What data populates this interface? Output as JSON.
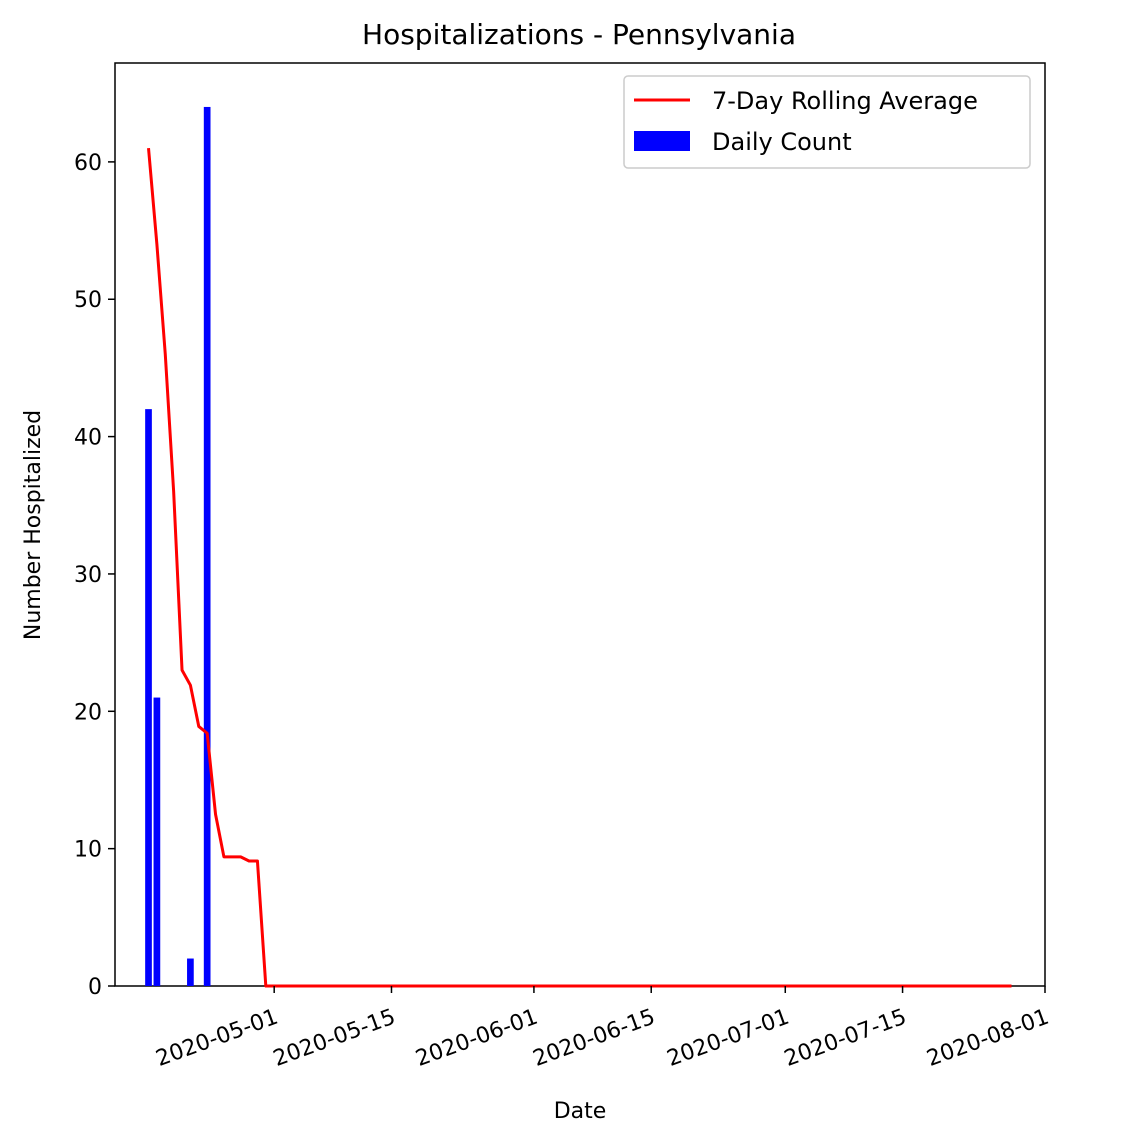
{
  "chart_data": {
    "type": "bar",
    "title": "Hospitalizations - Pennsylvania",
    "xlabel": "Date",
    "ylabel": "Number Hospitalized",
    "ylim": [
      0,
      67.2
    ],
    "xlim": [
      "2020-04-12",
      "2020-08-01"
    ],
    "x_ticks": [
      "2020-05-01",
      "2020-05-15",
      "2020-06-01",
      "2020-06-15",
      "2020-07-01",
      "2020-07-15",
      "2020-08-01"
    ],
    "y_ticks": [
      0,
      10,
      20,
      30,
      40,
      50,
      60
    ],
    "grid": false,
    "legend_position": "top-right",
    "series": [
      {
        "name": "7-Day Rolling Average",
        "kind": "line",
        "color": "#ff0000",
        "points": [
          {
            "x": "2020-04-16",
            "y": 61
          },
          {
            "x": "2020-04-17",
            "y": 54
          },
          {
            "x": "2020-04-18",
            "y": 46
          },
          {
            "x": "2020-04-19",
            "y": 36
          },
          {
            "x": "2020-04-20",
            "y": 23
          },
          {
            "x": "2020-04-21",
            "y": 21.9
          },
          {
            "x": "2020-04-22",
            "y": 18.9
          },
          {
            "x": "2020-04-23",
            "y": 18.4
          },
          {
            "x": "2020-04-24",
            "y": 12.5
          },
          {
            "x": "2020-04-25",
            "y": 9.4
          },
          {
            "x": "2020-04-26",
            "y": 9.4
          },
          {
            "x": "2020-04-27",
            "y": 9.4
          },
          {
            "x": "2020-04-28",
            "y": 9.1
          },
          {
            "x": "2020-04-29",
            "y": 9.1
          },
          {
            "x": "2020-04-30",
            "y": 0
          },
          {
            "x": "2020-07-28",
            "y": 0
          }
        ]
      },
      {
        "name": "Daily Count",
        "kind": "bar",
        "color": "#0000ff",
        "points": [
          {
            "x": "2020-04-16",
            "y": 42
          },
          {
            "x": "2020-04-17",
            "y": 21
          },
          {
            "x": "2020-04-21",
            "y": 2
          },
          {
            "x": "2020-04-23",
            "y": 64
          }
        ]
      }
    ]
  }
}
